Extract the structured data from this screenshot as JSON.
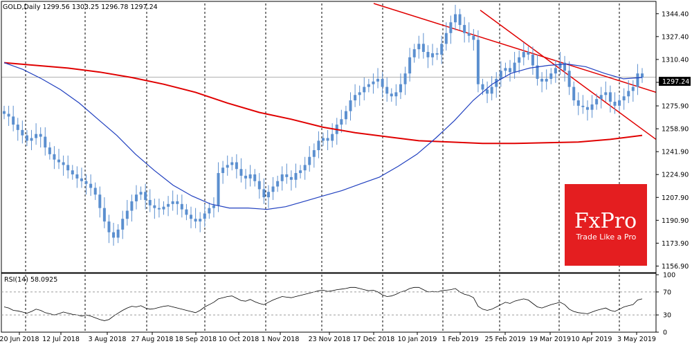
{
  "main_header": "GOLD,Daily  1299.56 1303.25 1296.78 1297.24",
  "rsi_header": "RSI(14) 58.0925",
  "current_price": "1297.24",
  "logo": {
    "brand": "FxPro",
    "tagline": "Trade Like a Pro",
    "color": "#e41e20"
  },
  "colors": {
    "candle": "#5b8fcf",
    "ma_blue": "#1f3fbf",
    "ma_red": "#e00000",
    "trend": "#e00000",
    "rsi": "#000000"
  },
  "chart_data": [
    {
      "type": "candlestick",
      "title": "GOLD,Daily",
      "y_ticks": [
        "1344.40",
        "1327.40",
        "1310.40",
        "1293.40",
        "1275.90",
        "1258.90",
        "1241.90",
        "1224.90",
        "1207.90",
        "1190.90",
        "1173.90",
        "1156.90"
      ],
      "x_ticks": [
        "20 Jun 2018",
        "12 Jul 2018",
        "3 Aug 2018",
        "27 Aug 2018",
        "18 Sep 2018",
        "10 Oct 2018",
        "1 Nov 2018",
        "23 Nov 2018",
        "17 Dec 2018",
        "10 Jan 2019",
        "1 Feb 2019",
        "25 Feb 2019",
        "19 Mar 2019",
        "10 Apr 2019",
        "3 May 2019"
      ],
      "ylim": [
        1152,
        1352
      ],
      "ohlc_last": {
        "open": 1299.56,
        "high": 1303.25,
        "low": 1296.78,
        "close": 1297.24
      },
      "closes": [
        1270,
        1268,
        1262,
        1258,
        1254,
        1250,
        1252,
        1255,
        1253,
        1245,
        1240,
        1236,
        1234,
        1232,
        1228,
        1225,
        1222,
        1220,
        1218,
        1215,
        1210,
        1200,
        1190,
        1182,
        1178,
        1184,
        1192,
        1198,
        1205,
        1210,
        1212,
        1206,
        1202,
        1200,
        1199,
        1201,
        1203,
        1205,
        1203,
        1199,
        1195,
        1192,
        1190,
        1192,
        1196,
        1200,
        1202,
        1226,
        1230,
        1232,
        1234,
        1229,
        1224,
        1222,
        1225,
        1220,
        1214,
        1208,
        1212,
        1216,
        1220,
        1225,
        1223,
        1221,
        1226,
        1228,
        1232,
        1238,
        1243,
        1250,
        1252,
        1250,
        1255,
        1262,
        1266,
        1272,
        1280,
        1284,
        1286,
        1290,
        1292,
        1294,
        1296,
        1290,
        1285,
        1283,
        1286,
        1292,
        1300,
        1312,
        1318,
        1322,
        1316,
        1312,
        1315,
        1314,
        1322,
        1330,
        1338,
        1344,
        1336,
        1330,
        1328,
        1325,
        1292,
        1288,
        1285,
        1290,
        1296,
        1302,
        1304,
        1301,
        1308,
        1312,
        1316,
        1314,
        1306,
        1296,
        1294,
        1296,
        1300,
        1304,
        1308,
        1302,
        1290,
        1280,
        1276,
        1275,
        1273,
        1277,
        1281,
        1284,
        1286,
        1279,
        1276,
        1280,
        1283,
        1287,
        1290,
        1300,
        1297
      ],
      "moving_average_100": [
        1308,
        1303,
        1296,
        1288,
        1278,
        1266,
        1254,
        1240,
        1228,
        1217,
        1209,
        1203,
        1200,
        1200,
        1199,
        1201,
        1205,
        1209,
        1213,
        1218,
        1223,
        1231,
        1240,
        1252,
        1265,
        1280,
        1292,
        1300,
        1304,
        1306,
        1307,
        1305,
        1300,
        1296,
        1297
      ],
      "moving_average_200": [
        1308,
        1306,
        1304,
        1301,
        1297,
        1292,
        1286,
        1278,
        1271,
        1266,
        1260,
        1256,
        1253,
        1250,
        1249,
        1248,
        1248,
        1248.5,
        1249,
        1251,
        1254
      ]
    },
    {
      "type": "line",
      "title": "RSI(14)",
      "y_ticks": [
        "100",
        "70",
        "30",
        "0"
      ],
      "ylim": [
        0,
        100
      ],
      "values": [
        44,
        42,
        38,
        37,
        35,
        33,
        36,
        40,
        38,
        34,
        32,
        30,
        32,
        35,
        33,
        31,
        30,
        28,
        30,
        28,
        25,
        22,
        20,
        22,
        28,
        33,
        38,
        42,
        45,
        44,
        46,
        42,
        40,
        41,
        43,
        45,
        46,
        44,
        42,
        40,
        38,
        36,
        34,
        38,
        44,
        48,
        52,
        58,
        60,
        62,
        63,
        59,
        55,
        54,
        57,
        53,
        50,
        48,
        52,
        56,
        59,
        62,
        61,
        60,
        62,
        64,
        66,
        68,
        70,
        72,
        73,
        71,
        72,
        74,
        75,
        76,
        78,
        78,
        76,
        74,
        72,
        73,
        70,
        65,
        62,
        63,
        66,
        70,
        72,
        76,
        78,
        78,
        74,
        70,
        71,
        70,
        72,
        73,
        74,
        76,
        70,
        66,
        64,
        60,
        45,
        40,
        38,
        40,
        44,
        48,
        52,
        50,
        54,
        56,
        58,
        56,
        50,
        44,
        42,
        45,
        48,
        50,
        52,
        48,
        40,
        36,
        34,
        33,
        32,
        35,
        38,
        40,
        42,
        38,
        36,
        40,
        44,
        46,
        48,
        56,
        58
      ]
    }
  ]
}
